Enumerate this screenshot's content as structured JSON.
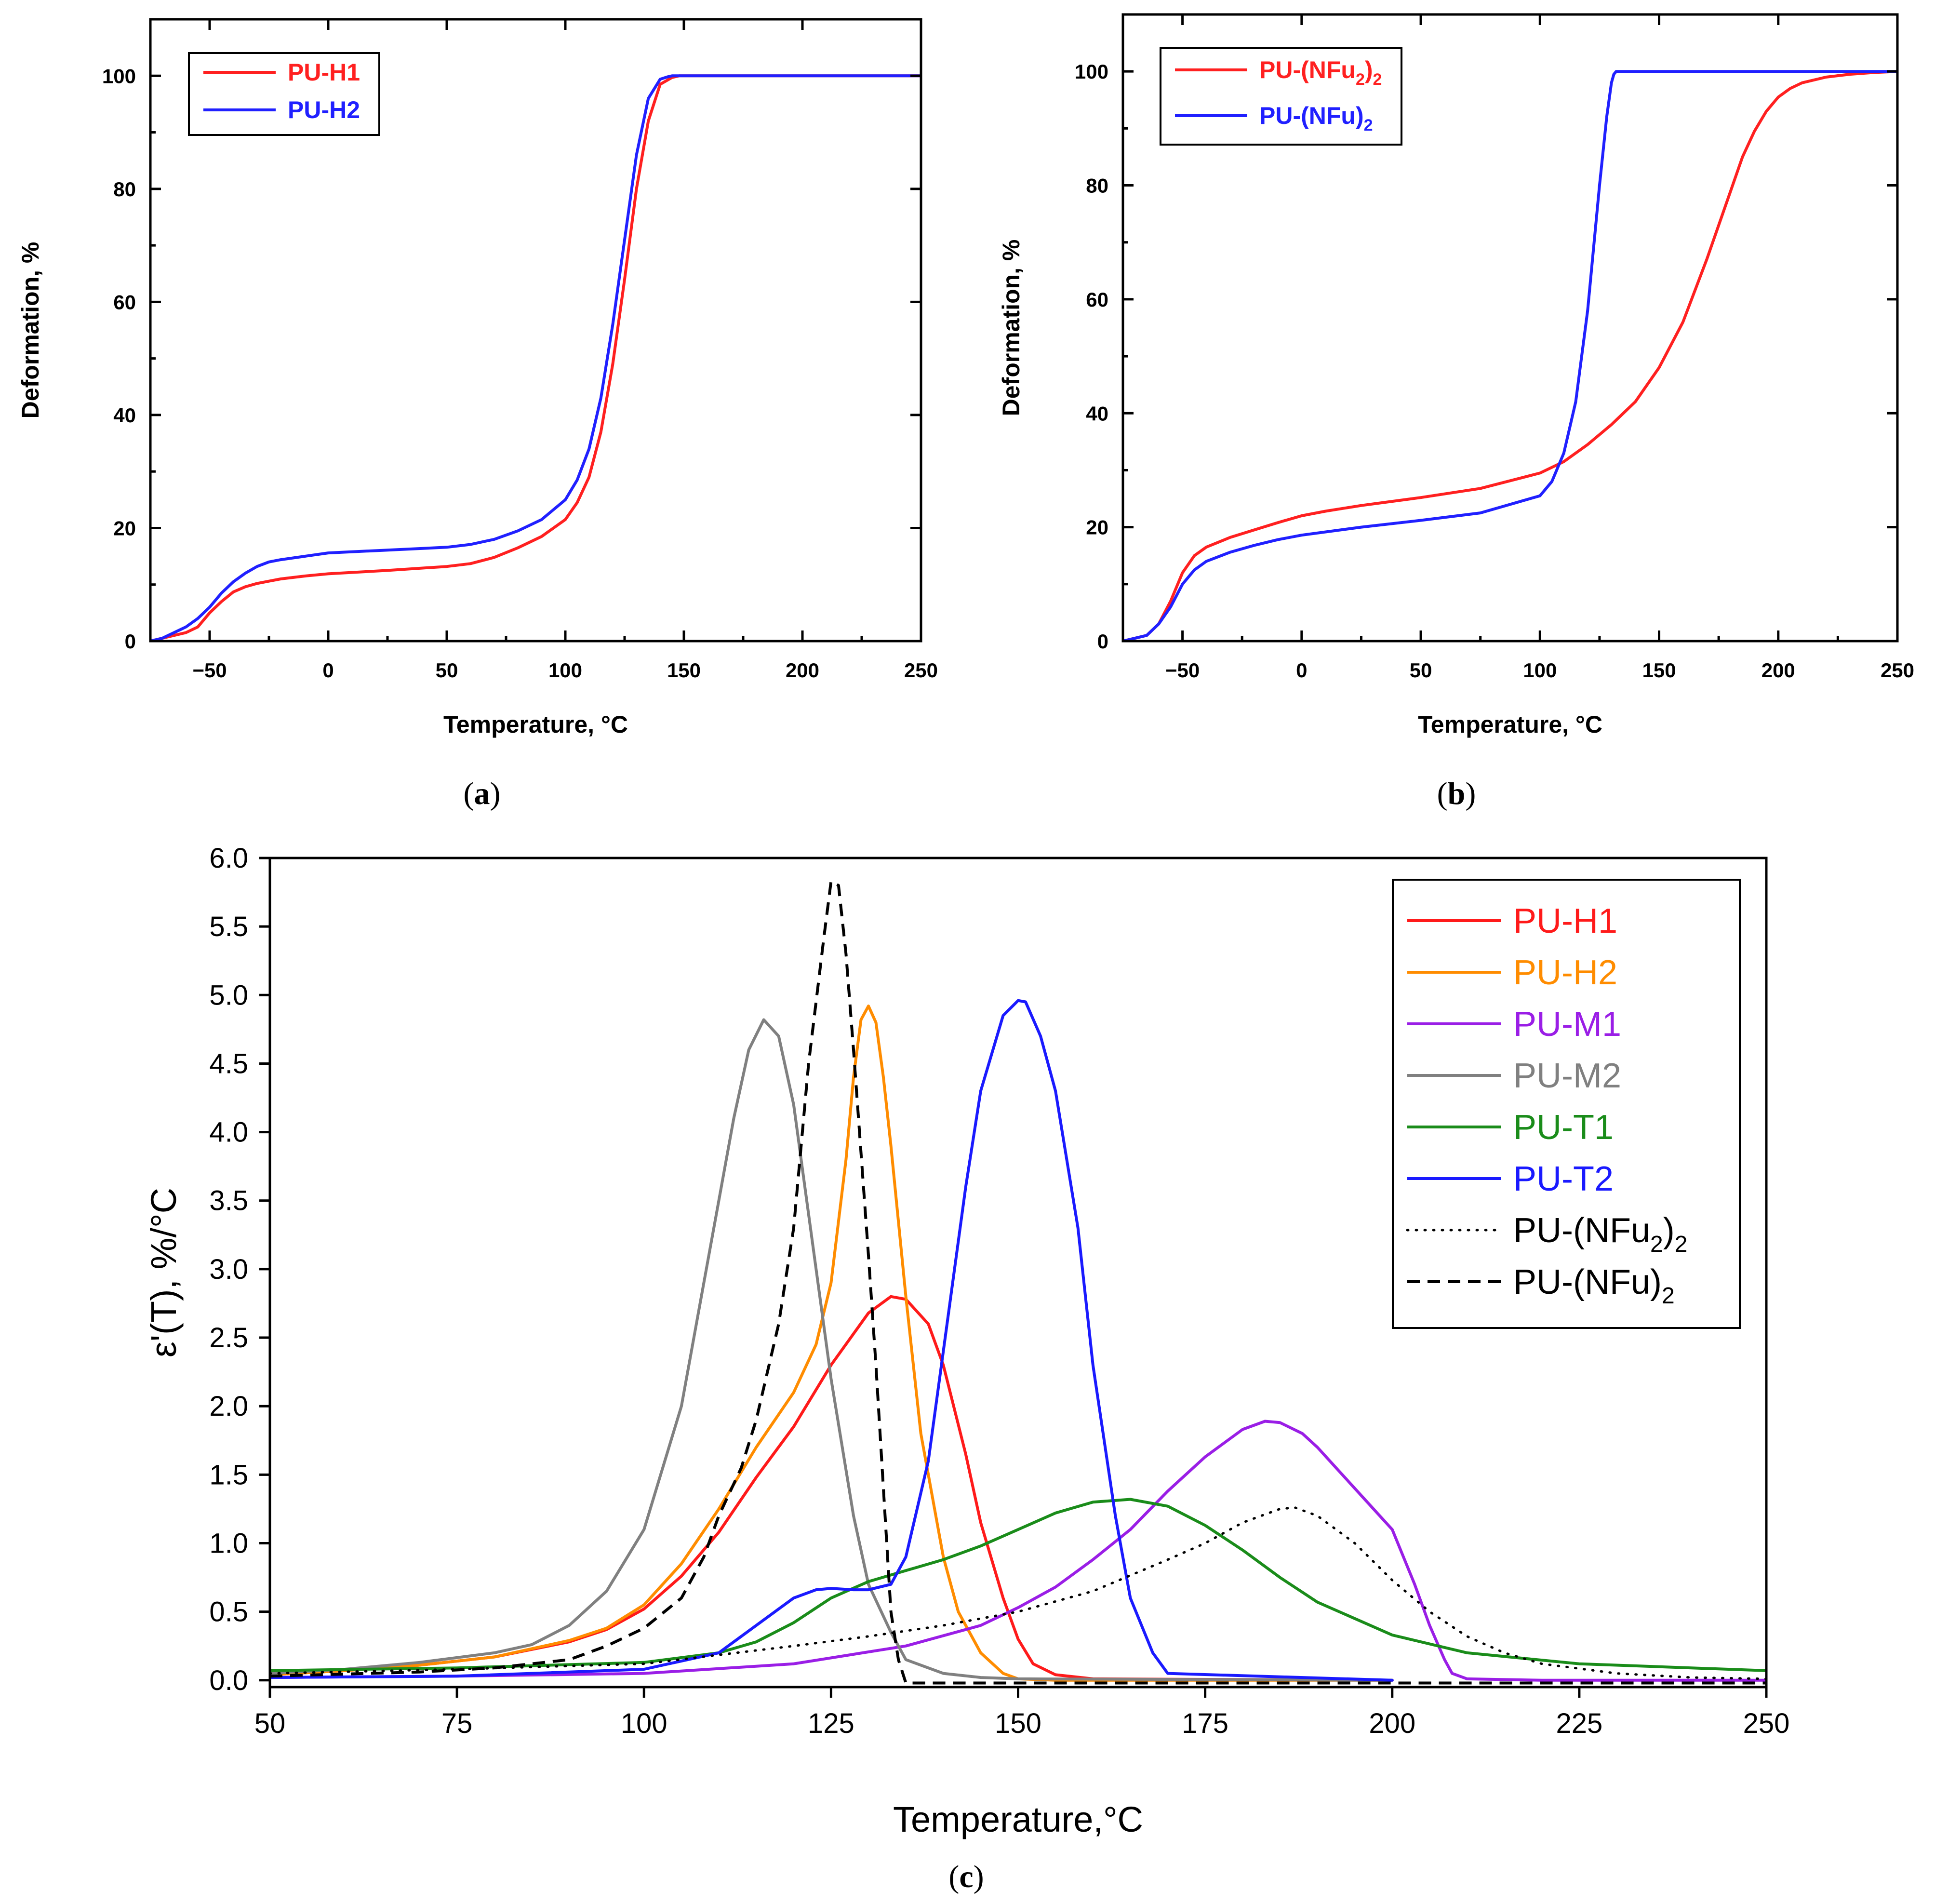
{
  "figure": {
    "panel_labels": [
      {
        "open": "(",
        "letter": "a",
        "close": ")"
      },
      {
        "open": "(",
        "letter": "b",
        "close": ")"
      },
      {
        "open": "(",
        "letter": "c",
        "close": ")"
      }
    ]
  },
  "chart_data": [
    {
      "id": "a",
      "type": "line",
      "title": "",
      "xlabel": "Temperature, °C",
      "ylabel": "Deformation, %",
      "xlim": [
        -75,
        250
      ],
      "ylim": [
        0,
        110
      ],
      "xticks": [
        -50,
        0,
        50,
        100,
        150,
        200,
        250
      ],
      "yticks": [
        0,
        20,
        40,
        60,
        80,
        100
      ],
      "xtick_labels": [
        "−50",
        "0",
        "50",
        "100",
        "150",
        "200",
        "250"
      ],
      "ytick_labels": [
        "0",
        "20",
        "40",
        "60",
        "80",
        "100"
      ],
      "legend": {
        "position": "top-left"
      },
      "series": [
        {
          "name": "PU-H1",
          "label_parts": [
            {
              "t": "PU-H1"
            }
          ],
          "color": "#ff2020",
          "dash": "solid",
          "x": [
            -75,
            -70,
            -60,
            -55,
            -50,
            -45,
            -40,
            -35,
            -30,
            -25,
            -20,
            -10,
            0,
            25,
            50,
            60,
            70,
            80,
            90,
            100,
            105,
            110,
            115,
            120,
            125,
            130,
            135,
            140,
            145,
            148,
            150,
            200,
            250
          ],
          "y": [
            0,
            0.5,
            1.5,
            2.5,
            5,
            7,
            8.7,
            9.6,
            10.2,
            10.6,
            11,
            11.5,
            11.9,
            12.5,
            13.2,
            13.7,
            14.8,
            16.5,
            18.5,
            21.5,
            24.5,
            29,
            37,
            49,
            64,
            80,
            92,
            98.5,
            99.7,
            100,
            100,
            100,
            100
          ]
        },
        {
          "name": "PU-H2",
          "label_parts": [
            {
              "t": "PU-H2"
            }
          ],
          "color": "#2020ff",
          "dash": "solid",
          "x": [
            -75,
            -70,
            -60,
            -55,
            -50,
            -45,
            -40,
            -35,
            -30,
            -25,
            -20,
            -10,
            0,
            25,
            50,
            60,
            70,
            80,
            90,
            100,
            105,
            110,
            115,
            120,
            125,
            130,
            135,
            140,
            143,
            145,
            200,
            250
          ],
          "y": [
            0,
            0.5,
            2.5,
            4,
            6,
            8.5,
            10.5,
            12,
            13.2,
            14,
            14.4,
            15,
            15.6,
            16.1,
            16.6,
            17.1,
            18,
            19.5,
            21.5,
            25,
            28.5,
            34,
            43,
            56,
            71,
            86,
            96,
            99.4,
            99.8,
            100,
            100,
            100
          ]
        }
      ]
    },
    {
      "id": "b",
      "type": "line",
      "title": "",
      "xlabel": "Temperature, °C",
      "ylabel": "Deformation, %",
      "xlim": [
        -75,
        250
      ],
      "ylim": [
        0,
        110
      ],
      "xticks": [
        -50,
        0,
        50,
        100,
        150,
        200,
        250
      ],
      "yticks": [
        0,
        20,
        40,
        60,
        80,
        100
      ],
      "xtick_labels": [
        "−50",
        "0",
        "50",
        "100",
        "150",
        "200",
        "250"
      ],
      "ytick_labels": [
        "0",
        "20",
        "40",
        "60",
        "80",
        "100"
      ],
      "legend": {
        "position": "top-left"
      },
      "series": [
        {
          "name": "PU-(NFu2)2",
          "label_parts": [
            {
              "t": "PU-(NFu"
            },
            {
              "t": "2",
              "sub": true
            },
            {
              "t": ")"
            },
            {
              "t": "2",
              "sub": true
            }
          ],
          "color": "#ff2020",
          "dash": "solid",
          "x": [
            -75,
            -70,
            -65,
            -60,
            -55,
            -50,
            -45,
            -40,
            -30,
            -20,
            -10,
            0,
            10,
            25,
            50,
            75,
            100,
            110,
            120,
            130,
            140,
            150,
            160,
            170,
            180,
            185,
            190,
            195,
            200,
            205,
            210,
            220,
            230,
            240,
            250
          ],
          "y": [
            0,
            0.5,
            1,
            3,
            7,
            12,
            15,
            16.5,
            18.2,
            19.5,
            20.8,
            22,
            22.8,
            23.8,
            25.2,
            26.8,
            29.5,
            31.5,
            34.5,
            38,
            42,
            48,
            56,
            67,
            79,
            85,
            89.5,
            93,
            95.5,
            97,
            98,
            99,
            99.5,
            99.8,
            100
          ]
        },
        {
          "name": "PU-(NFu)2",
          "label_parts": [
            {
              "t": "PU-(NFu)"
            },
            {
              "t": "2",
              "sub": true
            }
          ],
          "color": "#2020ff",
          "dash": "solid",
          "x": [
            -75,
            -70,
            -65,
            -60,
            -55,
            -50,
            -45,
            -40,
            -30,
            -20,
            -10,
            0,
            25,
            50,
            75,
            100,
            105,
            110,
            115,
            120,
            125,
            128,
            130,
            131,
            132,
            133,
            150,
            200,
            250
          ],
          "y": [
            0,
            0.5,
            1,
            3,
            6,
            10,
            12.5,
            14,
            15.6,
            16.8,
            17.8,
            18.6,
            20,
            21.2,
            22.5,
            25.5,
            28,
            33,
            42,
            58,
            80,
            92,
            98,
            99.5,
            100,
            100,
            100,
            100,
            100
          ]
        }
      ]
    },
    {
      "id": "c",
      "type": "line",
      "title": "",
      "xlabel": "Temperature,°C",
      "ylabel": "ε'(T), %/°C",
      "xlim": [
        50,
        250
      ],
      "ylim": [
        -0.05,
        6.0
      ],
      "xticks": [
        50,
        75,
        100,
        125,
        150,
        175,
        200,
        225,
        250
      ],
      "yticks": [
        0.0,
        0.5,
        1.0,
        1.5,
        2.0,
        2.5,
        3.0,
        3.5,
        4.0,
        4.5,
        5.0,
        5.5,
        6.0
      ],
      "xtick_labels": [
        "50",
        "75",
        "100",
        "125",
        "150",
        "175",
        "200",
        "225",
        "250"
      ],
      "ytick_labels": [
        "0.0",
        "0.5",
        "1.0",
        "1.5",
        "2.0",
        "2.5",
        "3.0",
        "3.5",
        "4.0",
        "4.5",
        "5.0",
        "5.5",
        "6.0"
      ],
      "legend": {
        "position": "top-right"
      },
      "series": [
        {
          "name": "PU-H1",
          "label_parts": [
            {
              "t": "PU-H1"
            }
          ],
          "color": "#ff1a1a",
          "dash": "solid",
          "x": [
            50,
            60,
            70,
            80,
            90,
            95,
            100,
            105,
            110,
            115,
            120,
            125,
            130,
            133,
            135,
            138,
            140,
            143,
            145,
            148,
            150,
            152,
            155,
            160,
            200
          ],
          "y": [
            0.04,
            0.07,
            0.11,
            0.17,
            0.28,
            0.37,
            0.52,
            0.76,
            1.08,
            1.48,
            1.85,
            2.3,
            2.68,
            2.8,
            2.78,
            2.6,
            2.3,
            1.65,
            1.15,
            0.6,
            0.3,
            0.12,
            0.04,
            0.01,
            0.0
          ]
        },
        {
          "name": "PU-H2",
          "label_parts": [
            {
              "t": "PU-H2"
            }
          ],
          "color": "#ff8c00",
          "dash": "solid",
          "x": [
            50,
            60,
            70,
            80,
            90,
            95,
            100,
            105,
            110,
            115,
            120,
            123,
            125,
            127,
            128,
            129,
            130,
            131,
            132,
            133,
            135,
            137,
            140,
            142,
            145,
            148,
            150,
            155,
            200
          ],
          "y": [
            0.04,
            0.07,
            0.11,
            0.17,
            0.29,
            0.38,
            0.55,
            0.85,
            1.25,
            1.7,
            2.1,
            2.45,
            2.9,
            3.8,
            4.4,
            4.82,
            4.92,
            4.8,
            4.4,
            3.9,
            2.8,
            1.8,
            0.9,
            0.5,
            0.2,
            0.05,
            0.01,
            0.0,
            0.0
          ]
        },
        {
          "name": "PU-M1",
          "label_parts": [
            {
              "t": "PU-M1"
            }
          ],
          "color": "#9a1ee6",
          "dash": "solid",
          "x": [
            50,
            75,
            100,
            120,
            135,
            145,
            150,
            155,
            160,
            165,
            170,
            175,
            180,
            183,
            185,
            188,
            190,
            195,
            200,
            203,
            205,
            207,
            208,
            210,
            220,
            250
          ],
          "y": [
            0.02,
            0.03,
            0.05,
            0.12,
            0.25,
            0.4,
            0.53,
            0.68,
            0.88,
            1.1,
            1.38,
            1.63,
            1.83,
            1.89,
            1.88,
            1.8,
            1.7,
            1.4,
            1.1,
            0.7,
            0.4,
            0.15,
            0.05,
            0.01,
            0.0,
            0.0
          ]
        },
        {
          "name": "PU-M2",
          "label_parts": [
            {
              "t": "PU-M2"
            }
          ],
          "color": "#808080",
          "dash": "solid",
          "x": [
            50,
            60,
            70,
            80,
            85,
            90,
            95,
            100,
            105,
            108,
            110,
            112,
            114,
            116,
            118,
            120,
            122,
            125,
            128,
            130,
            133,
            135,
            140,
            145,
            150,
            200
          ],
          "y": [
            0.05,
            0.08,
            0.13,
            0.2,
            0.26,
            0.4,
            0.65,
            1.1,
            2.0,
            2.9,
            3.5,
            4.1,
            4.6,
            4.82,
            4.7,
            4.2,
            3.4,
            2.2,
            1.2,
            0.7,
            0.35,
            0.15,
            0.05,
            0.02,
            0.01,
            0.0
          ]
        },
        {
          "name": "PU-T1",
          "label_parts": [
            {
              "t": "PU-T1"
            }
          ],
          "color": "#1a8c1a",
          "dash": "solid",
          "x": [
            50,
            75,
            100,
            110,
            115,
            120,
            125,
            130,
            135,
            140,
            145,
            150,
            155,
            160,
            165,
            170,
            175,
            180,
            185,
            190,
            200,
            210,
            225,
            250
          ],
          "y": [
            0.07,
            0.09,
            0.13,
            0.2,
            0.28,
            0.42,
            0.6,
            0.72,
            0.8,
            0.88,
            0.98,
            1.1,
            1.22,
            1.3,
            1.32,
            1.27,
            1.13,
            0.95,
            0.75,
            0.57,
            0.33,
            0.2,
            0.12,
            0.07
          ]
        },
        {
          "name": "PU-T2",
          "label_parts": [
            {
              "t": "PU-T2"
            }
          ],
          "color": "#1a1aff",
          "dash": "solid",
          "x": [
            50,
            75,
            100,
            110,
            115,
            120,
            123,
            125,
            128,
            130,
            133,
            135,
            138,
            140,
            143,
            145,
            148,
            150,
            151,
            153,
            155,
            158,
            160,
            163,
            165,
            168,
            170,
            200
          ],
          "y": [
            0.02,
            0.03,
            0.08,
            0.2,
            0.4,
            0.6,
            0.66,
            0.67,
            0.66,
            0.66,
            0.7,
            0.9,
            1.6,
            2.4,
            3.6,
            4.3,
            4.85,
            4.96,
            4.95,
            4.7,
            4.3,
            3.3,
            2.3,
            1.2,
            0.6,
            0.2,
            0.05,
            0.0
          ]
        },
        {
          "name": "PU-(NFu2)2",
          "label_parts": [
            {
              "t": "PU-(NFu"
            },
            {
              "t": "2",
              "sub": true
            },
            {
              "t": ")"
            },
            {
              "t": "2",
              "sub": true
            }
          ],
          "color": "#000000",
          "dash": "dotted",
          "x": [
            50,
            75,
            100,
            120,
            130,
            140,
            150,
            160,
            170,
            175,
            180,
            185,
            187,
            190,
            195,
            200,
            205,
            210,
            215,
            220,
            230,
            240,
            250
          ],
          "y": [
            0.05,
            0.08,
            0.12,
            0.25,
            0.32,
            0.4,
            0.5,
            0.65,
            0.88,
            1.0,
            1.15,
            1.25,
            1.26,
            1.2,
            1.0,
            0.73,
            0.5,
            0.32,
            0.2,
            0.12,
            0.05,
            0.02,
            0.01
          ]
        },
        {
          "name": "PU-(NFu)2",
          "label_parts": [
            {
              "t": "PU-(NFu)"
            },
            {
              "t": "2",
              "sub": true
            }
          ],
          "color": "#000000",
          "dash": "dashed",
          "x": [
            50,
            70,
            80,
            90,
            95,
            100,
            105,
            108,
            110,
            113,
            115,
            118,
            120,
            122,
            124,
            125,
            126,
            127,
            128,
            130,
            131,
            132,
            133,
            134,
            135,
            140,
            250
          ],
          "y": [
            0.03,
            0.06,
            0.09,
            0.15,
            0.25,
            0.38,
            0.6,
            0.9,
            1.2,
            1.55,
            1.9,
            2.6,
            3.3,
            4.5,
            5.4,
            5.83,
            5.8,
            5.3,
            4.6,
            3.1,
            2.3,
            1.4,
            0.5,
            0.15,
            -0.02,
            -0.02,
            -0.02
          ]
        }
      ]
    }
  ]
}
